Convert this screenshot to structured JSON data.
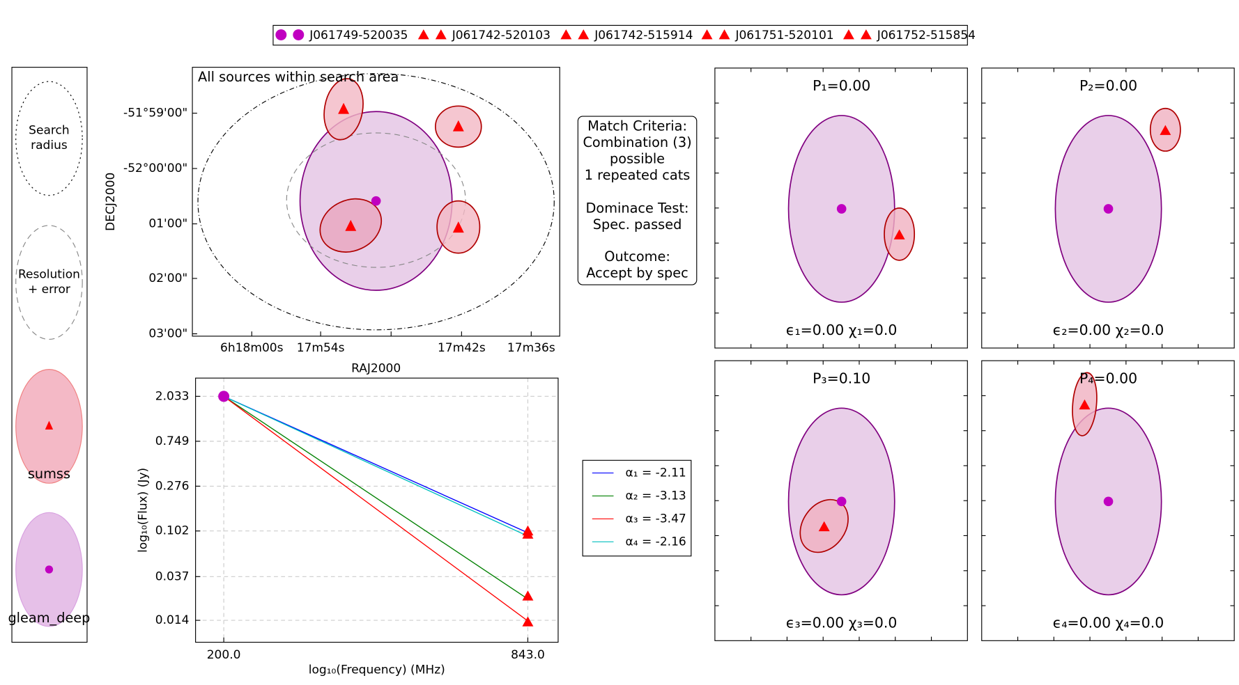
{
  "legend_top": [
    "J061749-520035",
    "J061742-520103",
    "J061742-515914",
    "J061751-520101",
    "J061752-515854"
  ],
  "key_panel": {
    "search_radius": [
      "Search",
      "radius"
    ],
    "resolution": [
      "Resolution",
      "+ error"
    ],
    "sumss": "sumss",
    "gleam": "gleam_deep"
  },
  "sky_map": {
    "title": "All sources within search area",
    "xlabel": "RAJ2000",
    "ylabel": "DECJ2000",
    "xtick_labels": [
      "6h18m00s",
      "17m54s",
      "17m42s",
      "17m36s"
    ],
    "ytick_labels": [
      "-51°59'00\"",
      "-52°00'00\"",
      "01'00\"",
      "02'00\"",
      "03'00\""
    ]
  },
  "match_box": {
    "criteria": [
      "Match Criteria:",
      "Combination (3)",
      "possible",
      "1 repeated cats"
    ],
    "dominance": [
      "Dominace Test:",
      "Spec. passed"
    ],
    "outcome": [
      "Outcome:",
      "Accept by spec"
    ]
  },
  "panels": [
    {
      "p": "P₁=0.00",
      "stats": "ϵ₁=0.00 χ₁=0.0"
    },
    {
      "p": "P₂=0.00",
      "stats": "ϵ₂=0.00 χ₂=0.0"
    },
    {
      "p": "P₃=0.10",
      "stats": "ϵ₃=0.00 χ₃=0.0"
    },
    {
      "p": "P₄=0.00",
      "stats": "ϵ₄=0.00 χ₄=0.0"
    }
  ],
  "chart_data": {
    "type": "line",
    "xlabel": "log₁₀(Frequency) (MHz)",
    "ylabel": "log₁₀(Flux) (Jy)",
    "xscale": "log",
    "yscale": "log",
    "grid": true,
    "xlim": [
      175,
      973
    ],
    "ylim": [
      0.0086,
      3.05
    ],
    "xticks": [
      {
        "value": 200,
        "label": "200.0"
      },
      {
        "value": 843,
        "label": "843.0"
      }
    ],
    "yticks": [
      2.033,
      0.749,
      0.276,
      0.102,
      0.037,
      0.014
    ],
    "x": [
      200,
      843
    ],
    "series": [
      {
        "name": "α₁ = -2.11",
        "color": "#0000ff",
        "values": [
          2.033,
          0.098
        ]
      },
      {
        "name": "α₂ = -3.13",
        "color": "#008000",
        "values": [
          2.033,
          0.0225
        ]
      },
      {
        "name": "α₃ = -3.47",
        "color": "#ff0000",
        "values": [
          2.033,
          0.0138
        ]
      },
      {
        "name": "α₄ = -2.16",
        "color": "#00bfbf",
        "values": [
          2.033,
          0.091
        ]
      }
    ],
    "points": [
      {
        "marker": "circle",
        "color": "#c000c0",
        "x": [
          200
        ],
        "values": [
          2.033
        ]
      },
      {
        "marker": "triangle",
        "color": "#ff0000",
        "x": [
          843,
          843,
          843,
          843
        ],
        "values": [
          0.102,
          0.095,
          0.024,
          0.0135
        ]
      }
    ]
  }
}
